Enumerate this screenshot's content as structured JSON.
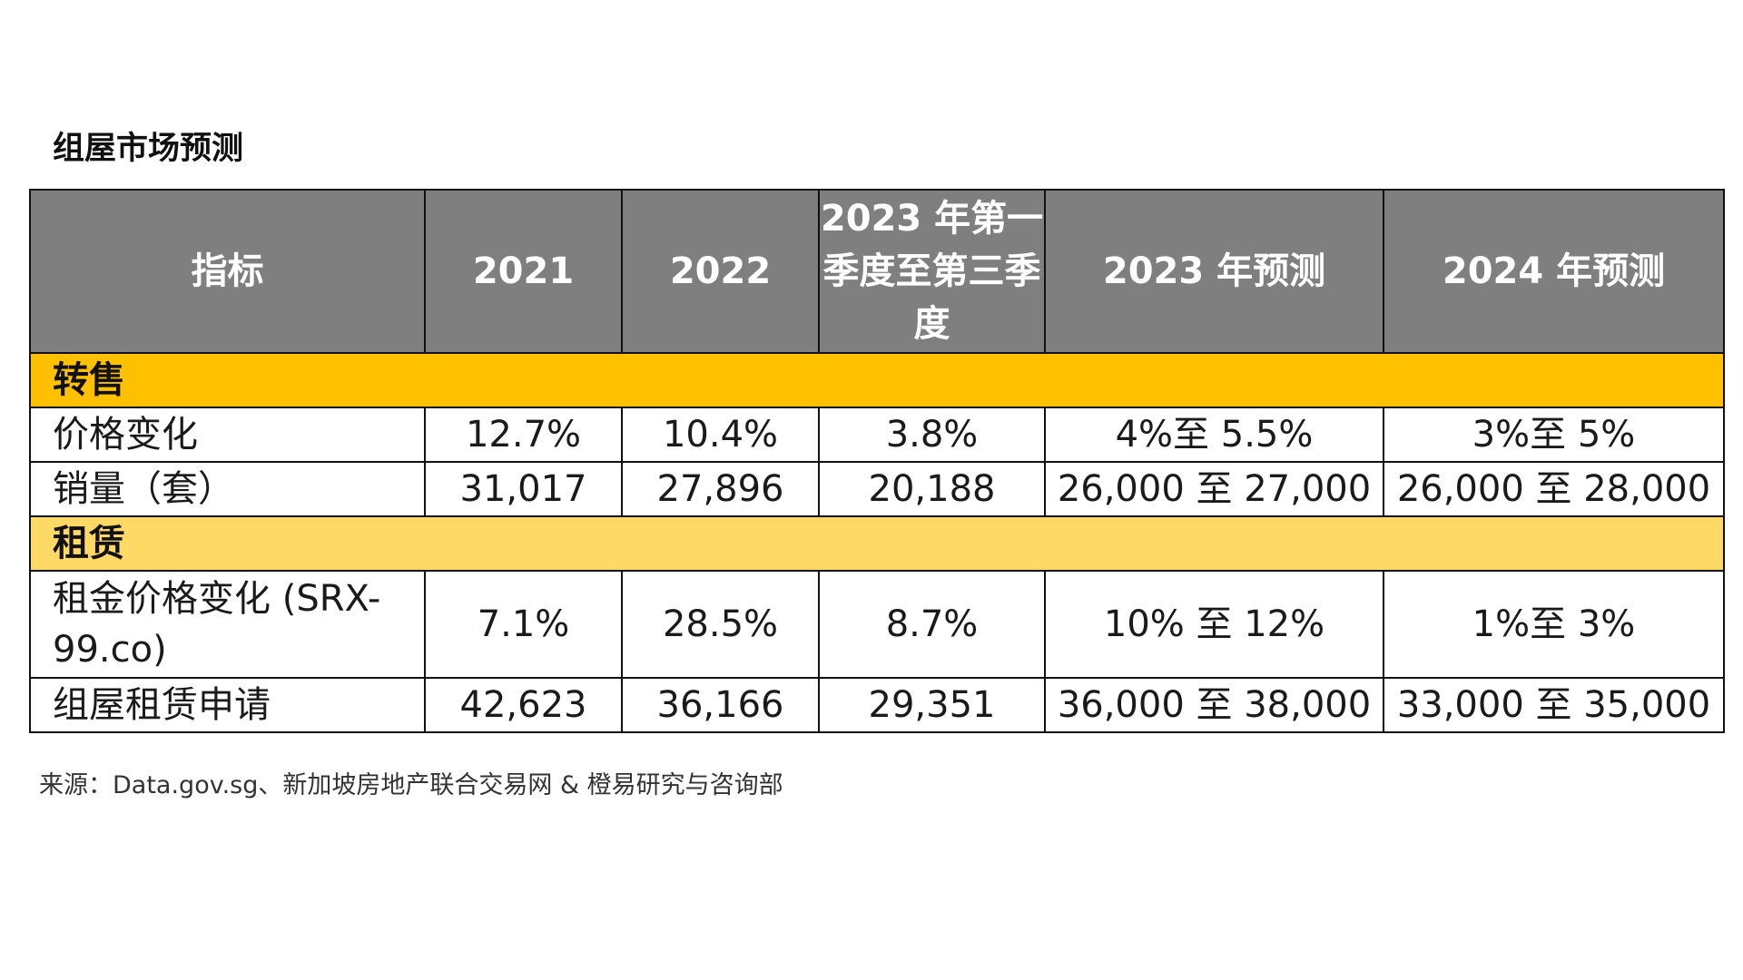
{
  "title": "组屋市场预测",
  "table": {
    "headers": [
      "指标",
      "2021",
      "2022",
      "2023 年第一季度至第三季度",
      "2023 年预测",
      "2024 年预测"
    ],
    "sections": [
      {
        "label": "转售",
        "rows": [
          [
            "价格变化",
            "12.7%",
            "10.4%",
            "3.8%",
            "4%至 5.5%",
            "3%至 5%"
          ],
          [
            "销量（套）",
            "31,017",
            "27,896",
            "20,188",
            "26,000 至 27,000",
            "26,000 至 28,000"
          ]
        ]
      },
      {
        "label": "租赁",
        "rows": [
          [
            "租金价格变化 (SRX-99.co)",
            "7.1%",
            "28.5%",
            "8.7%",
            "10% 至 12%",
            "1%至 3%"
          ],
          [
            "组屋租赁申请",
            "42,623",
            "36,166",
            "29,351",
            "36,000 至 38,000",
            "33,000 至 35,000"
          ]
        ]
      }
    ]
  },
  "source": "来源：Data.gov.sg、新加坡房地产联合交易网 & 橙易研究与咨询部",
  "colors": {
    "header_bg": "#7f7f7f",
    "resale_section_bg": "#ffc000",
    "rental_section_bg": "#ffd966"
  }
}
